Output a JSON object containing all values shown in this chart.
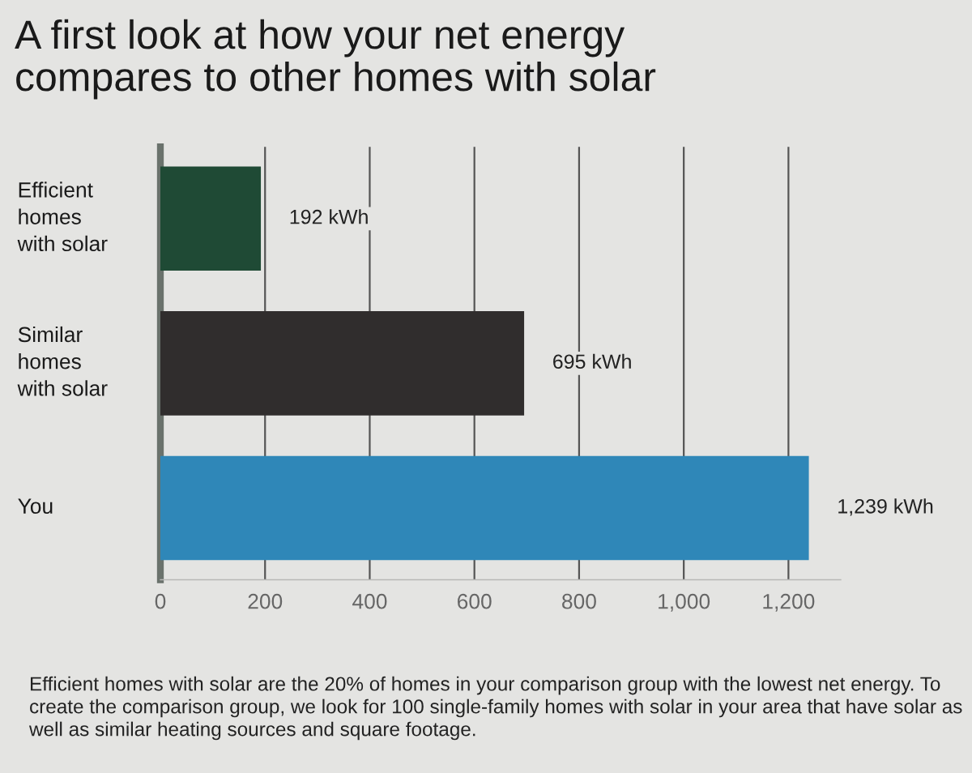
{
  "chart_data": {
    "type": "bar",
    "orientation": "horizontal",
    "title": "A first look at how your net energy\ncompares to other homes with solar",
    "categories": [
      "Efficient\nhomes\nwith solar",
      "Similar\nhomes\nwith solar",
      "You"
    ],
    "values": [
      192,
      695,
      1239
    ],
    "colors": [
      "#1f4a35",
      "#302d2d",
      "#2f87b8"
    ],
    "value_labels": [
      "192 kWh",
      "695 kWh",
      "1,239 kWh"
    ],
    "xlim": [
      0,
      1300
    ],
    "xticks": [
      0,
      200,
      400,
      600,
      800,
      {
        "value": 1000,
        "label": "1,000"
      },
      {
        "value": 1200,
        "label": "1,200"
      }
    ],
    "grid": "x",
    "annotations": [
      "Efficient homes with solar are the 20% of homes in your comparison group with the lowest net energy. To create the comparison group, we look for 100 single-family homes with solar in your area that have solar as well as similar heating sources and square footage."
    ]
  }
}
